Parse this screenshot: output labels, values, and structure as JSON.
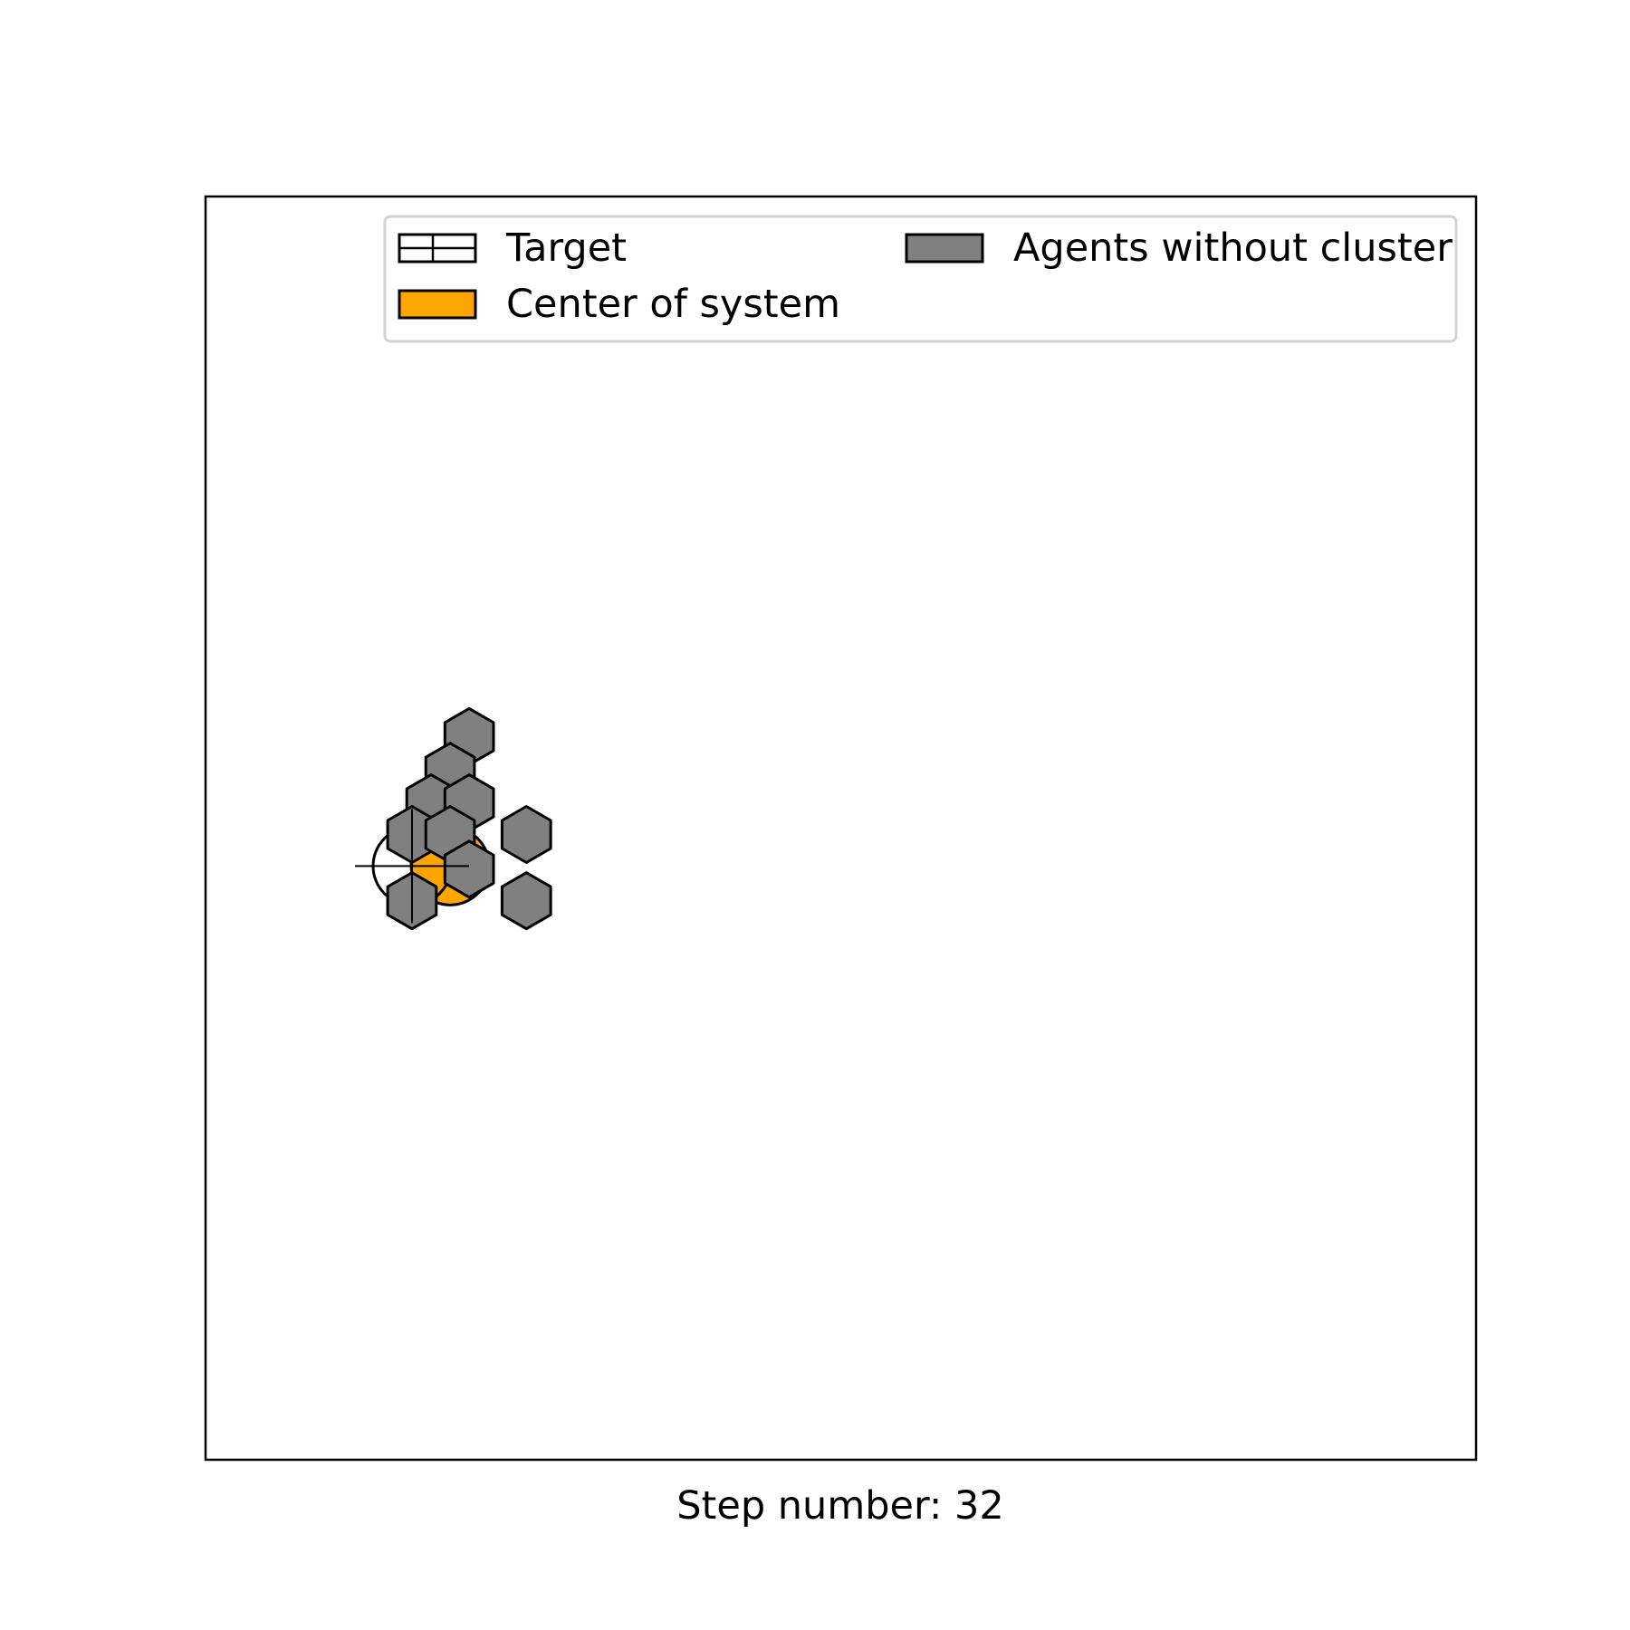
{
  "chart_data": {
    "type": "scatter",
    "title": "",
    "xlabel": "Step number: 32",
    "ylabel": "",
    "axes_ticks": false,
    "grid": false,
    "legend_placement": "top-right",
    "legend": [
      {
        "label": "Target",
        "style": "hatched-grid",
        "color": "#ffffff"
      },
      {
        "label": "Agents without cluster",
        "style": "filled",
        "color": "#808080"
      },
      {
        "label": "Center of system",
        "style": "filled",
        "color": "#ffa500"
      }
    ],
    "xlim": [
      0,
      40
    ],
    "ylim": [
      0,
      40
    ],
    "target": {
      "x": 6.5,
      "y": 18.8
    },
    "center_of_system": {
      "x": 7.7,
      "y": 18.8
    },
    "agents_without_cluster": [
      {
        "x": 8.3,
        "y": 22.9
      },
      {
        "x": 7.7,
        "y": 21.8
      },
      {
        "x": 7.1,
        "y": 20.8
      },
      {
        "x": 8.3,
        "y": 20.8
      },
      {
        "x": 6.5,
        "y": 19.8
      },
      {
        "x": 7.7,
        "y": 19.8
      },
      {
        "x": 10.1,
        "y": 19.8
      },
      {
        "x": 8.3,
        "y": 18.7
      },
      {
        "x": 6.5,
        "y": 17.7
      },
      {
        "x": 10.1,
        "y": 17.7
      }
    ],
    "colors": {
      "agent": "#808080",
      "center": "#ffa500",
      "edge": "#000000",
      "legend_frame": "#d3d3d3"
    }
  }
}
